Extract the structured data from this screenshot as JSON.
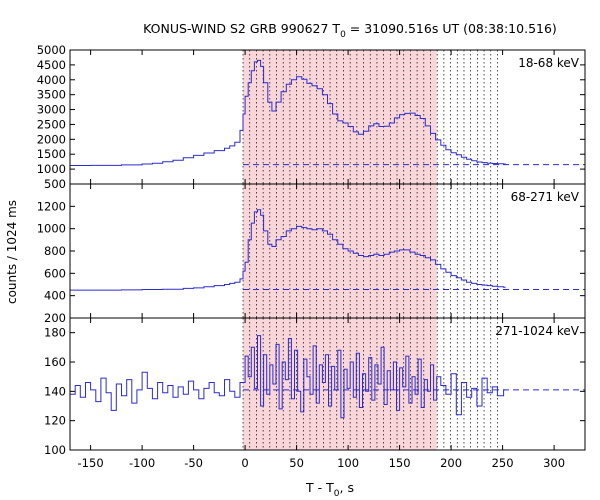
{
  "title": {
    "prefix": "KONUS-WIND S2 GRB 990627 T",
    "sub": "0",
    "suffix": " = 31090.516s UT (08:38:10.516)"
  },
  "ylabel": "counts / 1024 ms",
  "xlabel": {
    "prefix": "T - T",
    "sub": "0",
    "suffix": ", s"
  },
  "colors": {
    "series": "#2b2bd0",
    "shade": "#f9d6d9",
    "shade_edge": "#e9a9ae",
    "background_line": "#2b2bd0"
  },
  "chart_data": [
    {
      "type": "line",
      "name": "18-68 keV",
      "label": "18-68 keV",
      "xlim": [
        -170,
        330
      ],
      "ylim": [
        500,
        5000
      ],
      "yticks": [
        500,
        1000,
        1500,
        2000,
        2500,
        3000,
        3500,
        4000,
        4500,
        5000
      ],
      "ytick_labels": [
        "500",
        "1000",
        "1500",
        "2000",
        "2500",
        "3000",
        "3500",
        "4000",
        "4500",
        "5000"
      ],
      "background_level": 1150,
      "shaded_interval": [
        -2,
        186
      ],
      "dotted_lines_step": 6.5,
      "dotted_lines_end": 251,
      "x": [
        -170,
        -150,
        -120,
        -100,
        -90,
        -80,
        -70,
        -60,
        -50,
        -40,
        -30,
        -20,
        -15,
        -10,
        -5,
        -2,
        0,
        3,
        6,
        9,
        12,
        15,
        18,
        22,
        26,
        30,
        35,
        40,
        45,
        50,
        55,
        60,
        65,
        70,
        75,
        80,
        85,
        90,
        95,
        100,
        105,
        110,
        115,
        120,
        125,
        130,
        135,
        140,
        145,
        150,
        155,
        160,
        165,
        170,
        175,
        180,
        185,
        190,
        195,
        200,
        205,
        210,
        215,
        220,
        225,
        230,
        235,
        240,
        245,
        251
      ],
      "y": [
        1120,
        1125,
        1140,
        1170,
        1200,
        1250,
        1300,
        1380,
        1460,
        1540,
        1620,
        1700,
        1780,
        1900,
        2300,
        2850,
        3450,
        3900,
        4300,
        4600,
        4650,
        4450,
        3900,
        3250,
        2950,
        3250,
        3600,
        3850,
        4000,
        4100,
        4020,
        3880,
        3800,
        3700,
        3500,
        3200,
        2850,
        2620,
        2550,
        2430,
        2250,
        2170,
        2270,
        2450,
        2520,
        2430,
        2440,
        2550,
        2720,
        2830,
        2870,
        2880,
        2800,
        2700,
        2450,
        2200,
        1980,
        1800,
        1650,
        1550,
        1480,
        1400,
        1330,
        1280,
        1240,
        1220,
        1200,
        1190,
        1180,
        1170
      ]
    },
    {
      "type": "line",
      "name": "68-271 keV",
      "label": "68-271 keV",
      "xlim": [
        -170,
        330
      ],
      "ylim": [
        200,
        1400
      ],
      "yticks": [
        200,
        400,
        600,
        800,
        1000,
        1200
      ],
      "ytick_labels": [
        "200",
        "400",
        "600",
        "800",
        "1000",
        "1200"
      ],
      "background_level": 455,
      "shaded_interval": [
        -2,
        186
      ],
      "dotted_lines_step": 6.5,
      "dotted_lines_end": 251,
      "x": [
        -170,
        -150,
        -120,
        -100,
        -80,
        -60,
        -50,
        -40,
        -30,
        -20,
        -15,
        -10,
        -5,
        -2,
        0,
        3,
        6,
        9,
        12,
        15,
        18,
        22,
        26,
        30,
        35,
        40,
        45,
        50,
        55,
        60,
        65,
        70,
        75,
        80,
        85,
        90,
        95,
        100,
        105,
        110,
        115,
        120,
        125,
        130,
        135,
        140,
        145,
        150,
        155,
        160,
        165,
        170,
        175,
        180,
        185,
        190,
        195,
        200,
        205,
        210,
        215,
        220,
        225,
        230,
        235,
        240,
        245,
        251
      ],
      "y": [
        450,
        450,
        452,
        455,
        458,
        465,
        470,
        480,
        490,
        500,
        510,
        520,
        550,
        620,
        700,
        900,
        1050,
        1150,
        1170,
        1120,
        980,
        860,
        840,
        900,
        930,
        980,
        1000,
        1020,
        1010,
        1000,
        990,
        1000,
        980,
        950,
        900,
        860,
        820,
        800,
        780,
        760,
        750,
        760,
        770,
        760,
        770,
        790,
        800,
        810,
        810,
        790,
        770,
        760,
        740,
        720,
        680,
        640,
        610,
        580,
        560,
        540,
        520,
        510,
        500,
        495,
        490,
        485,
        480,
        475
      ]
    },
    {
      "type": "line",
      "name": "271-1024 keV",
      "label": "271-1024 keV",
      "xlim": [
        -170,
        330
      ],
      "ylim": [
        100,
        190
      ],
      "yticks": [
        100,
        120,
        140,
        160,
        180
      ],
      "ytick_labels": [
        "100",
        "120",
        "140",
        "160",
        "180"
      ],
      "background_level": 141,
      "shaded_interval": [
        -2,
        186
      ],
      "dotted_lines_step": 6.5,
      "dotted_lines_end": 251,
      "x": [
        -170,
        -165,
        -160,
        -155,
        -150,
        -145,
        -140,
        -135,
        -130,
        -125,
        -120,
        -115,
        -110,
        -105,
        -100,
        -95,
        -90,
        -85,
        -80,
        -75,
        -70,
        -65,
        -60,
        -55,
        -50,
        -45,
        -40,
        -35,
        -30,
        -25,
        -20,
        -15,
        -10,
        -5,
        0,
        3,
        6,
        9,
        12,
        15,
        18,
        21,
        24,
        27,
        30,
        33,
        36,
        39,
        42,
        45,
        48,
        51,
        54,
        57,
        60,
        63,
        66,
        69,
        72,
        75,
        78,
        81,
        84,
        87,
        90,
        93,
        96,
        99,
        102,
        105,
        108,
        111,
        114,
        117,
        120,
        123,
        126,
        129,
        132,
        135,
        138,
        141,
        144,
        147,
        150,
        153,
        156,
        159,
        162,
        165,
        168,
        171,
        174,
        177,
        180,
        183,
        186,
        190,
        195,
        200,
        205,
        210,
        215,
        220,
        225,
        230,
        235,
        240,
        245,
        251
      ],
      "y": [
        138,
        144,
        136,
        146,
        141,
        133,
        149,
        139,
        127,
        145,
        137,
        148,
        132,
        141,
        153,
        142,
        135,
        146,
        139,
        144,
        136,
        143,
        138,
        147,
        141,
        135,
        142,
        146,
        139,
        137,
        148,
        140,
        136,
        146,
        164,
        150,
        170,
        142,
        178,
        130,
        165,
        138,
        158,
        145,
        172,
        128,
        160,
        148,
        176,
        135,
        168,
        140,
        126,
        162,
        150,
        138,
        171,
        132,
        158,
        146,
        165,
        130,
        157,
        141,
        168,
        122,
        155,
        142,
        160,
        136,
        166,
        129,
        152,
        140,
        163,
        134,
        158,
        145,
        170,
        131,
        154,
        141,
        160,
        127,
        156,
        143,
        164,
        132,
        150,
        138,
        162,
        129,
        148,
        140,
        158,
        134,
        150,
        144,
        138,
        152,
        124,
        146,
        136,
        142,
        130,
        149,
        139,
        143,
        137,
        141
      ]
    }
  ],
  "x_axis": {
    "xlim": [
      -170,
      330
    ],
    "ticks": [
      -150,
      -100,
      -50,
      0,
      50,
      100,
      150,
      200,
      250,
      300
    ],
    "tick_labels": [
      "-150",
      "-100",
      "-50",
      "0",
      "50",
      "100",
      "150",
      "200",
      "250",
      "300"
    ]
  }
}
